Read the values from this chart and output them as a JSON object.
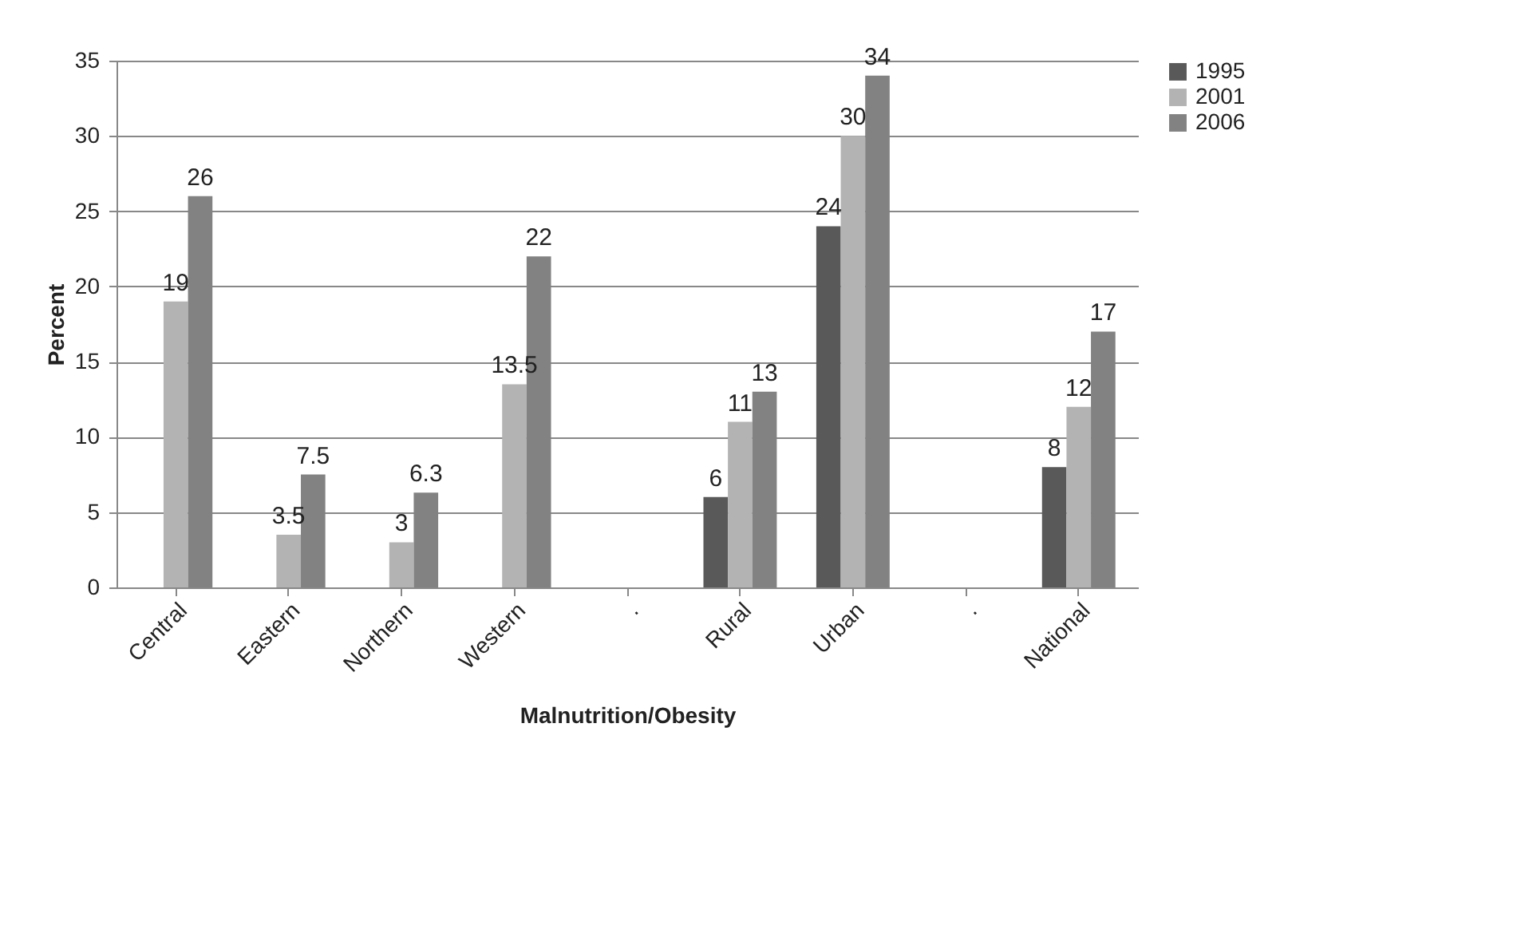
{
  "chart_data": {
    "type": "bar",
    "xlabel": "Malnutrition/Obesity",
    "ylabel": "Percent",
    "categories": [
      "Central",
      "Eastern",
      "Northern",
      "Western",
      ".",
      "Rural",
      "Urban",
      ".",
      "National"
    ],
    "series": [
      {
        "name": "1995",
        "color": "#595959",
        "values": [
          null,
          null,
          null,
          null,
          null,
          6,
          24,
          null,
          8
        ]
      },
      {
        "name": "2001",
        "color": "#b3b3b3",
        "values": [
          19,
          3.5,
          3,
          13.5,
          null,
          11,
          30,
          null,
          12
        ]
      },
      {
        "name": "2006",
        "color": "#828282",
        "values": [
          26,
          7.5,
          6.3,
          22,
          null,
          13,
          34,
          null,
          17
        ]
      }
    ],
    "ylim": [
      0,
      35
    ],
    "yticks": [
      0,
      5,
      10,
      15,
      20,
      25,
      30,
      35
    ],
    "grid": "y",
    "legend": "right",
    "data_labels": true
  }
}
